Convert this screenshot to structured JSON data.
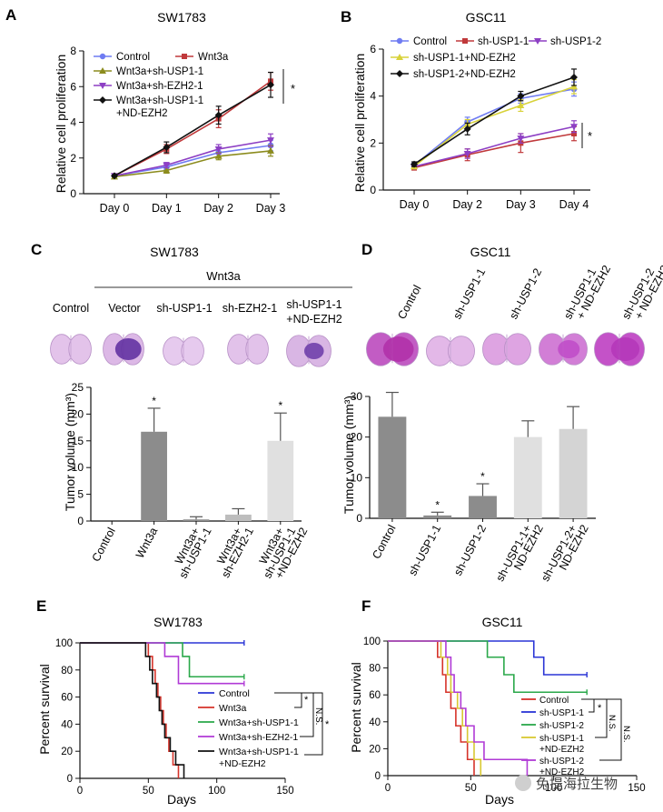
{
  "panels": {
    "A": {
      "letter": "A",
      "chart_data": {
        "type": "line",
        "title": "SW1783",
        "ylabel": "Relative cell proliferation",
        "xlabel": "",
        "categories": [
          "Day 0",
          "Day 1",
          "Day 2",
          "Day 3"
        ],
        "ylim": [
          0,
          8
        ],
        "yticks": [
          0,
          2,
          4,
          6,
          8
        ],
        "series": [
          {
            "name": "Control",
            "color": "#6f7cf2",
            "marker": "circle",
            "values": [
              1.0,
              1.5,
              2.3,
              2.7
            ],
            "err": [
              0.05,
              0.15,
              0.25,
              0.3
            ]
          },
          {
            "name": "Wnt3a",
            "color": "#c0393b",
            "marker": "square",
            "values": [
              1.0,
              2.5,
              4.2,
              6.3
            ],
            "err": [
              0.05,
              0.25,
              0.5,
              0.5
            ]
          },
          {
            "name": "Wnt3a+sh-USP1-1",
            "color": "#8c8c1e",
            "marker": "triangle",
            "values": [
              0.95,
              1.3,
              2.1,
              2.4
            ],
            "err": [
              0.05,
              0.15,
              0.2,
              0.3
            ]
          },
          {
            "name": "Wnt3a+sh-EZH2-1",
            "color": "#8d3fc4",
            "marker": "triangle-down",
            "values": [
              1.0,
              1.6,
              2.5,
              3.0
            ],
            "err": [
              0.05,
              0.15,
              0.25,
              0.35
            ]
          },
          {
            "name": "Wnt3a+sh-USP1-1\n+ND-EZH2",
            "color": "#111111",
            "marker": "diamond",
            "values": [
              1.0,
              2.6,
              4.4,
              6.1
            ],
            "err": [
              0.05,
              0.3,
              0.5,
              0.7
            ]
          }
        ],
        "legend_labels": [
          "Control",
          "Wnt3a",
          "Wnt3a+sh-USP1-1",
          "Wnt3a+sh-EZH2-1",
          "Wnt3a+sh-USP1-1",
          "+ND-EZH2"
        ],
        "significance": "*"
      }
    },
    "B": {
      "letter": "B",
      "chart_data": {
        "type": "line",
        "title": "GSC11",
        "ylabel": "Relative cell proliferation",
        "xlabel": "",
        "categories": [
          "Day 0",
          "Day 2",
          "Day 3",
          "Day 4"
        ],
        "ylim": [
          0,
          6
        ],
        "yticks": [
          0,
          2,
          4,
          6
        ],
        "series": [
          {
            "name": "Control",
            "color": "#6f7cf2",
            "marker": "circle",
            "values": [
              1.05,
              2.9,
              3.9,
              4.3
            ],
            "err": [
              0.1,
              0.2,
              0.2,
              0.3
            ]
          },
          {
            "name": "sh-USP1-1",
            "color": "#c0393b",
            "marker": "square",
            "values": [
              0.95,
              1.5,
              2.0,
              2.4
            ],
            "err": [
              0.1,
              0.25,
              0.4,
              0.3
            ]
          },
          {
            "name": "sh-USP1-2",
            "color": "#8d3fc4",
            "marker": "triangle-down",
            "values": [
              1.0,
              1.55,
              2.2,
              2.7
            ],
            "err": [
              0.1,
              0.2,
              0.2,
              0.25
            ]
          },
          {
            "name": "sh-USP1-1+ND-EZH2",
            "color": "#d8d23a",
            "marker": "triangle",
            "values": [
              1.0,
              2.8,
              3.6,
              4.4
            ],
            "err": [
              0.1,
              0.2,
              0.25,
              0.3
            ]
          },
          {
            "name": "sh-USP1-2+ND-EZH2",
            "color": "#111111",
            "marker": "diamond",
            "values": [
              1.1,
              2.6,
              4.0,
              4.8
            ],
            "err": [
              0.1,
              0.25,
              0.2,
              0.35
            ]
          }
        ],
        "legend_labels": [
          "Control",
          "sh-USP1-1",
          "sh-USP1-2",
          "sh-USP1-1+ND-EZH2",
          "sh-USP1-2+ND-EZH2"
        ],
        "significance": "*"
      }
    },
    "C": {
      "letter": "C",
      "title": "SW1783",
      "group_label": "Wnt3a",
      "image_labels": [
        "Control",
        "Vector",
        "sh-USP1-1",
        "sh-EZH2-1",
        "sh-USP1-1",
        "+ND-EZH2"
      ],
      "chart_data": {
        "type": "bar",
        "ylabel": "Tumor volume (mm³)",
        "categories": [
          "Control",
          "Wnt3a",
          "Wnt3a+\nsh-USP1-1",
          "Wnt3a+\nsh-EZH2-1",
          "Wnt3a+\nsh-USP1-1\n+ND-EZH2"
        ],
        "values": [
          0,
          16.7,
          0.3,
          1.2,
          15.0
        ],
        "err": [
          0,
          4.4,
          0.5,
          1.1,
          5.2
        ],
        "colors": [
          "#8c8c8c",
          "#8c8c8c",
          "#8c8c8c",
          "#bdbdbd",
          "#e0e0e0"
        ],
        "ylim": [
          0,
          25
        ],
        "yticks": [
          0,
          5,
          10,
          15,
          20,
          25
        ],
        "stars": [
          "",
          "*",
          "",
          "",
          "*"
        ]
      }
    },
    "D": {
      "letter": "D",
      "title": "GSC11",
      "image_labels": [
        "Control",
        "sh-USP1-1",
        "sh-USP1-2",
        "sh-USP1-1\n+ ND-EZH2",
        "sh-USP1-2\n+ ND-EZH2"
      ],
      "chart_data": {
        "type": "bar",
        "ylabel": "Tumor volume (mm³)",
        "categories": [
          "Control",
          "sh-USP1-1",
          "sh-USP1-2",
          "sh-USP1-1+\nND-EZH2",
          "sh-USP1-2+\nND-EZH2"
        ],
        "values": [
          25,
          0.7,
          5.5,
          20,
          22
        ],
        "err": [
          6,
          0.8,
          3,
          4,
          5.5
        ],
        "colors": [
          "#8c8c8c",
          "#8c8c8c",
          "#8c8c8c",
          "#e0e0e0",
          "#d4d4d4"
        ],
        "ylim": [
          0,
          30
        ],
        "yticks": [
          0,
          10,
          20,
          30
        ],
        "stars": [
          "",
          "*",
          "*",
          "",
          ""
        ]
      }
    },
    "E": {
      "letter": "E",
      "chart_data": {
        "type": "line",
        "title": "SW1783",
        "xlabel": "Days",
        "ylabel": "Percent survival",
        "xlim": [
          0,
          150
        ],
        "xticks": [
          0,
          50,
          100,
          150
        ],
        "ylim": [
          0,
          100
        ],
        "yticks": [
          0,
          20,
          40,
          60,
          80,
          100
        ],
        "series": [
          {
            "name": "Control",
            "color": "#2a35d6",
            "steps": [
              [
                0,
                100
              ],
              [
                120,
                100
              ]
            ]
          },
          {
            "name": "Wnt3a",
            "color": "#d6332a",
            "steps": [
              [
                0,
                100
              ],
              [
                50,
                100
              ],
              [
                50,
                90
              ],
              [
                53,
                90
              ],
              [
                53,
                80
              ],
              [
                55,
                80
              ],
              [
                55,
                70
              ],
              [
                57,
                70
              ],
              [
                57,
                60
              ],
              [
                59,
                60
              ],
              [
                59,
                50
              ],
              [
                61,
                50
              ],
              [
                61,
                40
              ],
              [
                63,
                40
              ],
              [
                63,
                30
              ],
              [
                65,
                30
              ],
              [
                65,
                20
              ],
              [
                68,
                20
              ],
              [
                68,
                10
              ],
              [
                72,
                10
              ],
              [
                72,
                0
              ]
            ]
          },
          {
            "name": "Wnt3a+sh-USP1-1",
            "color": "#2aa84a",
            "steps": [
              [
                0,
                100
              ],
              [
                75,
                100
              ],
              [
                75,
                90
              ],
              [
                80,
                90
              ],
              [
                80,
                75
              ],
              [
                120,
                75
              ]
            ]
          },
          {
            "name": "Wnt3a+sh-EZH2-1",
            "color": "#b03ad6",
            "steps": [
              [
                0,
                100
              ],
              [
                62,
                100
              ],
              [
                62,
                90
              ],
              [
                72,
                90
              ],
              [
                72,
                70
              ],
              [
                120,
                70
              ]
            ]
          },
          {
            "name": "Wnt3a+sh-USP1-1\n+ND-EZH2",
            "color": "#111111",
            "steps": [
              [
                0,
                100
              ],
              [
                48,
                100
              ],
              [
                48,
                90
              ],
              [
                51,
                90
              ],
              [
                51,
                80
              ],
              [
                53,
                80
              ],
              [
                53,
                70
              ],
              [
                56,
                70
              ],
              [
                56,
                60
              ],
              [
                58,
                60
              ],
              [
                58,
                50
              ],
              [
                60,
                50
              ],
              [
                60,
                40
              ],
              [
                62,
                40
              ],
              [
                62,
                30
              ],
              [
                66,
                30
              ],
              [
                66,
                20
              ],
              [
                70,
                20
              ],
              [
                70,
                10
              ],
              [
                76,
                10
              ],
              [
                76,
                0
              ]
            ]
          }
        ],
        "legend_labels": [
          "Control",
          "Wnt3a",
          "Wnt3a+sh-USP1-1",
          "Wnt3a+sh-EZH2-1",
          "Wnt3a+sh-USP1-1",
          "+ND-EZH2"
        ],
        "annotations": [
          "*",
          "N.S.",
          "*"
        ]
      }
    },
    "F": {
      "letter": "F",
      "chart_data": {
        "type": "line",
        "title": "GSC11",
        "xlabel": "Days",
        "ylabel": "Percent survival",
        "xlim": [
          0,
          150
        ],
        "xticks": [
          0,
          50,
          100,
          150
        ],
        "ylim": [
          0,
          100
        ],
        "yticks": [
          0,
          20,
          40,
          60,
          80,
          100
        ],
        "series": [
          {
            "name": "Control",
            "color": "#d6332a",
            "steps": [
              [
                0,
                100
              ],
              [
                30,
                100
              ],
              [
                30,
                88
              ],
              [
                33,
                88
              ],
              [
                33,
                75
              ],
              [
                35,
                75
              ],
              [
                35,
                62
              ],
              [
                38,
                62
              ],
              [
                38,
                50
              ],
              [
                41,
                50
              ],
              [
                41,
                37
              ],
              [
                44,
                37
              ],
              [
                44,
                25
              ],
              [
                48,
                25
              ],
              [
                48,
                12
              ],
              [
                52,
                12
              ],
              [
                52,
                0
              ]
            ]
          },
          {
            "name": "sh-USP1-1",
            "color": "#2a35d6",
            "steps": [
              [
                0,
                100
              ],
              [
                88,
                100
              ],
              [
                88,
                88
              ],
              [
                94,
                88
              ],
              [
                94,
                75
              ],
              [
                120,
                75
              ]
            ]
          },
          {
            "name": "sh-USP1-2",
            "color": "#2aa84a",
            "steps": [
              [
                0,
                100
              ],
              [
                60,
                100
              ],
              [
                60,
                88
              ],
              [
                70,
                88
              ],
              [
                70,
                75
              ],
              [
                76,
                75
              ],
              [
                76,
                62
              ],
              [
                120,
                62
              ]
            ]
          },
          {
            "name": "sh-USP1-1\n+ND-EZH2",
            "color": "#d8c832",
            "steps": [
              [
                0,
                100
              ],
              [
                32,
                100
              ],
              [
                32,
                88
              ],
              [
                36,
                88
              ],
              [
                36,
                75
              ],
              [
                38,
                75
              ],
              [
                38,
                62
              ],
              [
                42,
                62
              ],
              [
                42,
                50
              ],
              [
                45,
                50
              ],
              [
                45,
                37
              ],
              [
                48,
                37
              ],
              [
                48,
                25
              ],
              [
                52,
                25
              ],
              [
                52,
                12
              ],
              [
                56,
                12
              ],
              [
                56,
                0
              ]
            ]
          },
          {
            "name": "sh-USP1-2\n+ND-EZH2",
            "color": "#b03ad6",
            "steps": [
              [
                0,
                100
              ],
              [
                35,
                100
              ],
              [
                35,
                88
              ],
              [
                38,
                88
              ],
              [
                38,
                75
              ],
              [
                40,
                75
              ],
              [
                40,
                62
              ],
              [
                44,
                62
              ],
              [
                44,
                50
              ],
              [
                47,
                50
              ],
              [
                47,
                37
              ],
              [
                52,
                37
              ],
              [
                52,
                25
              ],
              [
                58,
                25
              ],
              [
                58,
                12
              ],
              [
                84,
                12
              ],
              [
                84,
                0
              ]
            ]
          }
        ],
        "legend_labels": [
          "Control",
          "sh-USP1-1",
          "sh-USP1-2",
          "sh-USP1-1",
          "+ND-EZH2",
          "sh-USP1-2",
          "+ND-EZH2"
        ],
        "annotations": [
          "*",
          "N.S.",
          "N.S."
        ]
      }
    }
  },
  "watermark": "兔提海拉生物"
}
